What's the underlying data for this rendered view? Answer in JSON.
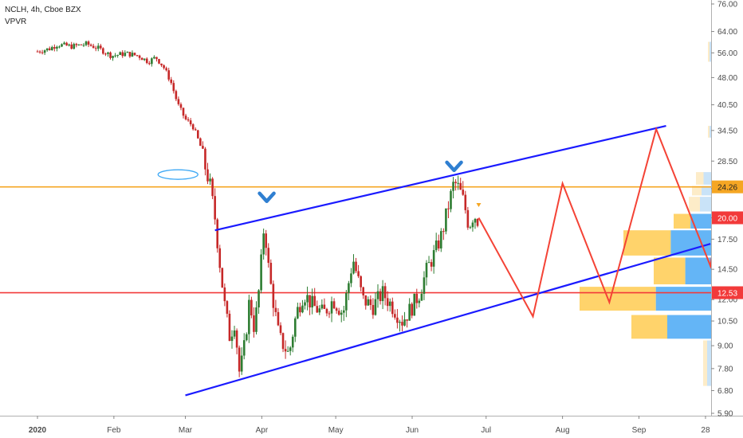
{
  "header": {
    "symbol_line": "NCLH, 4h, Cboe BZX",
    "indicator": "VPVR"
  },
  "colors": {
    "up": "#2e7d32",
    "down": "#c62828",
    "channel": "#1a1aff",
    "projection": "#f44336",
    "orange_level": "#f5a623",
    "red_level": "#f23a3a",
    "vpvr_blue": "#64b5f6",
    "vpvr_blue_light": "#c9e3f8",
    "vpvr_yellow": "#ffd36b",
    "vpvr_yellow_light": "#fdecc8",
    "marker_blue": "#2f7fd1"
  },
  "chart_data": {
    "type": "candlestick",
    "y_ticks": [
      "76.00",
      "64.00",
      "56.00",
      "48.00",
      "40.50",
      "34.50",
      "28.50",
      "24.00",
      "20.00",
      "17.50",
      "14.50",
      "12.00",
      "10.50",
      "9.00",
      "7.80",
      "6.80",
      "5.90"
    ],
    "y_scale": "log",
    "x_ticks": [
      "2020",
      "Feb",
      "Mar",
      "Apr",
      "May",
      "Jun",
      "Jul",
      "Aug",
      "Sep",
      "28"
    ],
    "price_labels": [
      {
        "value": 24.26,
        "text": "24.26",
        "color": "#f5a623"
      },
      {
        "value": 20.0,
        "text": "20.00",
        "color": "#f23a3a"
      },
      {
        "value": 12.53,
        "text": "12.53",
        "color": "#f23a3a"
      }
    ],
    "levels": [
      {
        "value": 24.26,
        "color": "#f5a623"
      },
      {
        "value": 12.53,
        "color": "#f23a3a"
      }
    ],
    "price_path": [
      [
        "2020-01-01",
        56.5
      ],
      [
        "2020-01-06",
        57.5
      ],
      [
        "2020-01-09",
        59.0
      ],
      [
        "2020-01-15",
        58.3
      ],
      [
        "2020-01-21",
        59.2
      ],
      [
        "2020-01-26",
        57.5
      ],
      [
        "2020-01-31",
        55.0
      ],
      [
        "2020-02-06",
        55.8
      ],
      [
        "2020-02-11",
        55.0
      ],
      [
        "2020-02-15",
        53.0
      ],
      [
        "2020-02-18",
        54.5
      ],
      [
        "2020-02-21",
        51.5
      ],
      [
        "2020-02-24",
        47.0
      ],
      [
        "2020-02-27",
        40.5
      ],
      [
        "2020-03-01",
        37.0
      ],
      [
        "2020-03-04",
        35.5
      ],
      [
        "2020-03-07",
        31.5
      ],
      [
        "2020-03-09",
        27.5
      ],
      [
        "2020-03-11",
        24.5
      ],
      [
        "2020-03-13",
        20.0
      ],
      [
        "2020-03-15",
        15.0
      ],
      [
        "2020-03-17",
        11.5
      ],
      [
        "2020-03-19",
        9.5
      ],
      [
        "2020-03-21",
        10.5
      ],
      [
        "2020-03-23",
        7.5
      ],
      [
        "2020-03-25",
        9.0
      ],
      [
        "2020-03-27",
        12.0
      ],
      [
        "2020-03-29",
        10.0
      ],
      [
        "2020-03-31",
        13.0
      ],
      [
        "2020-04-02",
        19.5
      ],
      [
        "2020-04-04",
        14.0
      ],
      [
        "2020-04-06",
        11.5
      ],
      [
        "2020-04-08",
        9.5
      ],
      [
        "2020-04-12",
        8.5
      ],
      [
        "2020-04-15",
        11.0
      ],
      [
        "2020-04-18",
        12.5
      ],
      [
        "2020-04-22",
        11.5
      ],
      [
        "2020-04-26",
        11.0
      ],
      [
        "2020-04-30",
        12.0
      ],
      [
        "2020-05-04",
        11.0
      ],
      [
        "2020-05-08",
        15.5
      ],
      [
        "2020-05-12",
        12.0
      ],
      [
        "2020-05-16",
        11.5
      ],
      [
        "2020-05-20",
        12.5
      ],
      [
        "2020-05-24",
        11.5
      ],
      [
        "2020-05-28",
        10.5
      ],
      [
        "2020-06-01",
        11.5
      ],
      [
        "2020-06-04",
        12.5
      ],
      [
        "2020-06-07",
        14.5
      ],
      [
        "2020-06-10",
        16.0
      ],
      [
        "2020-06-13",
        18.0
      ],
      [
        "2020-06-16",
        22.0
      ],
      [
        "2020-06-18",
        25.0
      ],
      [
        "2020-06-20",
        24.0
      ],
      [
        "2020-06-22",
        22.0
      ],
      [
        "2020-06-24",
        19.0
      ],
      [
        "2020-06-26",
        20.5
      ],
      [
        "2020-06-28",
        19.5
      ]
    ],
    "channel_upper": [
      [
        "2020-03-13",
        18.5
      ],
      [
        "2020-09-12",
        35.5
      ]
    ],
    "channel_lower": [
      [
        "2020-03-01",
        6.6
      ],
      [
        "2020-09-30",
        17.0
      ]
    ],
    "projection_path": [
      [
        "2020-06-28",
        20.0
      ],
      [
        "2020-07-20",
        10.8
      ],
      [
        "2020-08-01",
        24.8
      ],
      [
        "2020-08-20",
        11.8
      ],
      [
        "2020-09-08",
        34.8
      ],
      [
        "2020-09-30",
        14.8
      ],
      [
        "2020-10-10",
        40.0
      ],
      [
        "2020-10-25",
        17.5
      ]
    ],
    "swing_markers": [
      [
        "2020-04-03",
        22.5
      ],
      [
        "2020-06-18",
        27.3
      ]
    ],
    "ellipse_marker": [
      "2020-02-27",
      26.2
    ],
    "vpvr_rows": [
      {
        "lo": 9.4,
        "hi": 10.9,
        "vol": 100,
        "up_ratio": 0.55
      },
      {
        "lo": 11.2,
        "hi": 13.0,
        "vol": 165,
        "up_ratio": 0.42
      },
      {
        "lo": 13.2,
        "hi": 15.6,
        "vol": 72,
        "up_ratio": 0.45
      },
      {
        "lo": 15.8,
        "hi": 18.5,
        "vol": 110,
        "up_ratio": 0.46
      },
      {
        "lo": 18.7,
        "hi": 20.5,
        "vol": 47,
        "up_ratio": 0.55
      },
      {
        "lo": 20.8,
        "hi": 22.8,
        "vol": 28,
        "up_ratio": 0.5
      },
      {
        "lo": 23.0,
        "hi": 24.4,
        "vol": 24,
        "up_ratio": 0.5
      },
      {
        "lo": 24.6,
        "hi": 26.6,
        "vol": 19,
        "up_ratio": 0.5
      },
      {
        "lo": 33.0,
        "hi": 35.5,
        "vol": 4,
        "up_ratio": 0.5
      },
      {
        "lo": 53.0,
        "hi": 60.0,
        "vol": 4,
        "up_ratio": 0.5
      },
      {
        "lo": 7.0,
        "hi": 9.3,
        "vol": 10,
        "up_ratio": 0.5
      }
    ]
  }
}
